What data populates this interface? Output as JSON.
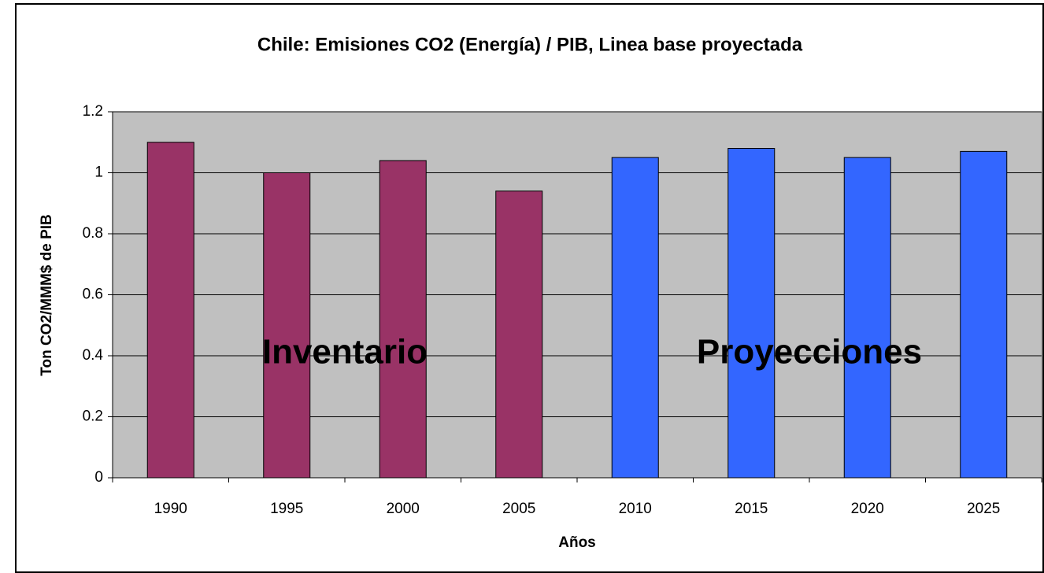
{
  "chart_data": {
    "type": "bar",
    "title": "Chile: Emisiones CO2 (Energía) / PIB, Linea base proyectada",
    "y_label": "Ton CO2/MMM$ de PIB",
    "x_label": "Años",
    "categories": [
      "1990",
      "1995",
      "2000",
      "2005",
      "2010",
      "2015",
      "2020",
      "2025"
    ],
    "values": [
      1.1,
      1.0,
      1.04,
      0.94,
      1.05,
      1.08,
      1.05,
      1.07
    ],
    "colors": [
      "#993366",
      "#993366",
      "#993366",
      "#993366",
      "#3366ff",
      "#3366ff",
      "#3366ff",
      "#3366ff"
    ],
    "annotations": [
      "Inventario",
      "Proyecciones"
    ],
    "ylim": [
      0,
      1.2
    ],
    "yticks": [
      0,
      0.2,
      0.4,
      0.6,
      0.8,
      1,
      1.2
    ],
    "grid": true
  }
}
